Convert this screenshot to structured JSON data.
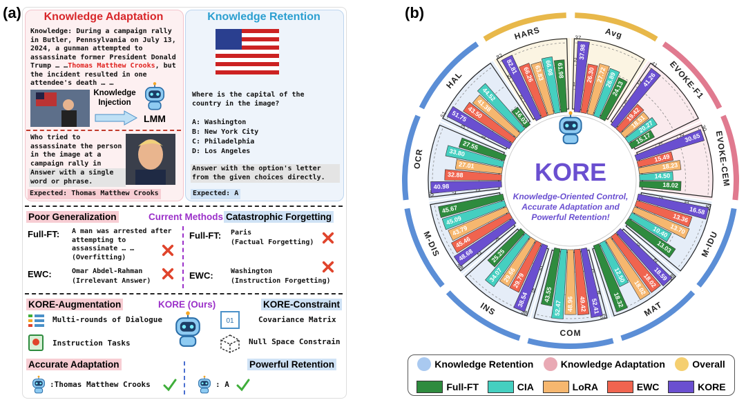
{
  "panel_a": {
    "label": "(a)",
    "adaptation": {
      "title": "Knowledge Adaptation",
      "knowledge_label": "Knowledge:",
      "knowledge_text": " During a campaign rally in Butler, Pennsylvania on July 13, 2024, a gunman attempted to assassinate former President Donald Trump … …",
      "highlight": "Thomas Matthew Crooks",
      "knowledge_tail": ", but the incident resulted in one attendee's death … …",
      "injection": "Knowledge Injection",
      "model": "LMM",
      "question": "Who tried to assassinate the person in the image at a campaign rally in Butler, Pennsylvania?",
      "instruction": "Answer with a single word or phrase.",
      "expected": "Expected: Thomas Matthew Crooks"
    },
    "retention": {
      "title": "Knowledge Retention",
      "question": "Where is the capital of the country in the image?",
      "options": [
        "A: Washington",
        "B: New York City",
        "C: Philadelphia",
        "D: Los Angeles"
      ],
      "instruction": "Answer with the option's letter from the given choices directly.",
      "expected": "Expected: A"
    },
    "middle": {
      "poor_generalization": "Poor Generalization",
      "current_methods": "Current Methods",
      "catastrophic_forgetting": "Catastrophic Forgetting",
      "left": [
        {
          "method": "Full-FT:",
          "answer": "A man was arrested after attempting to assassinate … …",
          "note": "(Overfitting)"
        },
        {
          "method": "EWC:",
          "answer": "Omar Abdel-Rahman",
          "note": "(Irrelevant Answer)"
        }
      ],
      "right": [
        {
          "method": "Full-FT:",
          "answer": "Paris",
          "note": "(Factual Forgetting)"
        },
        {
          "method": "EWC:",
          "answer": "Washington",
          "note": "(Instruction Forgetting)"
        }
      ]
    },
    "bottom": {
      "augmentation": "KORE-Augmentation",
      "kore": "KORE (Ours)",
      "constraint": "KORE-Constraint",
      "augmentation_items": [
        "Multi-rounds of Dialogue",
        "Instruction Tasks"
      ],
      "constraint_items": [
        "Covariance Matrix",
        "Null Space Constrain"
      ],
      "accurate": "Accurate Adaptation",
      "powerful": "Powerful Retention",
      "result_left": ":Thomas Matthew Crooks",
      "result_right": ": A"
    }
  },
  "chart_data": {
    "type": "radial_bar",
    "label": "(b)",
    "title": "KORE",
    "subtitle": "Knowledge-Oriented Control, Accurate Adaptation and Powerful Retention!",
    "categories": [
      "HARS",
      "Avg",
      "EVOKE-F1",
      "EVOKE-CEM",
      "M-IDU",
      "MAT",
      "COM",
      "INS",
      "M-DIS",
      "OCR",
      "HAL"
    ],
    "category_colors": [
      "#e8b84a",
      "#e8b84a",
      "#e07a8f",
      "#e07a8f",
      "#5b8ed6",
      "#5b8ed6",
      "#5b8ed6",
      "#5b8ed6",
      "#5b8ed6",
      "#5b8ed6",
      "#5b8ed6"
    ],
    "axes": [
      {
        "rlim": [
          0,
          82
        ],
        "ticks": [
          27,
          55,
          82
        ]
      },
      {
        "rlim": [
          0,
          37
        ],
        "ticks": [
          12,
          25,
          37
        ]
      },
      {
        "rlim": [
          0,
          41
        ],
        "ticks": [
          13,
          27,
          41
        ]
      },
      {
        "rlim": [
          0,
          30
        ],
        "ticks": [
          10,
          20,
          30
        ]
      },
      {
        "rlim": [
          0,
          16
        ],
        "ticks": [
          5,
          11,
          16
        ]
      },
      {
        "rlim": [
          0,
          18
        ],
        "ticks": [
          6,
          12,
          18
        ]
      },
      {
        "rlim": [
          0,
          52
        ],
        "ticks": [
          17,
          34,
          52
        ]
      },
      {
        "rlim": [
          0,
          38
        ],
        "ticks": [
          12,
          25,
          38
        ]
      },
      {
        "rlim": [
          0,
          48
        ],
        "ticks": [
          16,
          32,
          48
        ]
      },
      {
        "rlim": [
          0,
          40
        ],
        "ticks": [
          13,
          27,
          40
        ]
      },
      {
        "rlim": [
          0,
          51
        ],
        "ticks": [
          17,
          34,
          51
        ]
      }
    ],
    "series": [
      {
        "name": "Full-FT",
        "color": "#2e8b3e",
        "values": [
          61.98,
          24.13,
          15.17,
          18.02,
          13.03,
          18.32,
          43.55,
          25.25,
          45.67,
          27.55,
          16.03
        ],
        "value_labels": [
          "61.98",
          "24.13",
          "15.17",
          "18.02",
          "13.03",
          "18.32",
          "43.55",
          "25.25",
          "45.67",
          "27.55",
          "16.03"
        ]
      },
      {
        "name": "CIA",
        "color": "#45cfc0",
        "values": [
          66.98,
          26.89,
          20.27,
          14.5,
          10.4,
          12.5,
          52.47,
          34.07,
          45.09,
          33.8,
          44.52
        ],
        "value_labels": [
          "66.98",
          "26.89",
          "20.27",
          "14.50",
          "10.40",
          "12.50",
          "52.47",
          "34.07",
          "45.09",
          "33.80",
          "44.52"
        ]
      },
      {
        "name": "LoRA",
        "color": "#f6b76f",
        "values": [
          63.83,
          27.72,
          18.51,
          18.23,
          13.7,
          18.02,
          48.96,
          29.66,
          43.79,
          27.01,
          41.38
        ],
        "value_labels": [
          "63.83",
          "27.72",
          "18.51",
          "18.23",
          "13.70",
          "18.02",
          "48.96",
          "29.66",
          "43.79",
          "27.01",
          "41.38"
        ]
      },
      {
        "name": "EWC",
        "color": "#f0644f",
        "values": [
          66.26,
          26.3,
          19.42,
          15.49,
          13.36,
          18.02,
          49.42,
          29.79,
          45.46,
          32.88,
          43.5
        ],
        "value_labels": [
          "66.26",
          "26.30",
          "19.42",
          "15.49",
          "13.36",
          "18.02",
          "49.42",
          "29.79",
          "45.46",
          "32.88",
          "43.50"
        ]
      },
      {
        "name": "KORE",
        "color": "#6a4fd0",
        "values": [
          82.81,
          37.98,
          41.26,
          30.65,
          16.58,
          18.59,
          52.41,
          38.54,
          48.68,
          40.98,
          51.75
        ],
        "value_labels": [
          "82.81",
          "37.98",
          "41.26",
          "30.65",
          "16.58",
          "18.59",
          "52.41",
          "38.54",
          "48.68",
          "40.98",
          "51.75"
        ]
      }
    ],
    "legend_groups": [
      {
        "name": "Knowledge Retention",
        "color": "#a9c9f0"
      },
      {
        "name": "Knowledge Adaptation",
        "color": "#e9a9b4"
      },
      {
        "name": "Overall",
        "color": "#f5cf70"
      }
    ]
  }
}
